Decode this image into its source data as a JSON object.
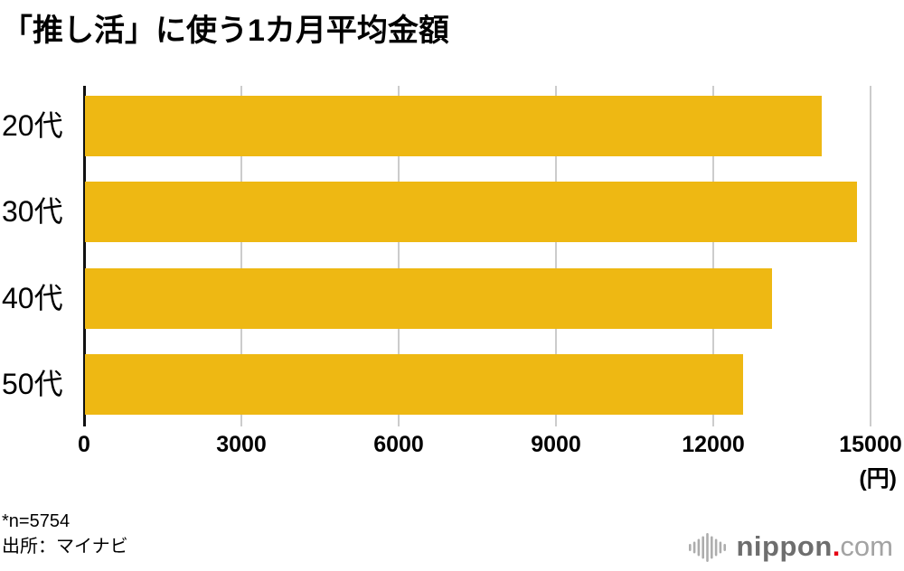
{
  "title": "「推し活」に使う1カ月平均金額",
  "chart_data": {
    "type": "bar",
    "orientation": "horizontal",
    "title": "「推し活」に使う1カ月平均金額",
    "categories": [
      "20代",
      "30代",
      "40代",
      "50代"
    ],
    "values": [
      14050,
      14720,
      13100,
      12550
    ],
    "xlabel": "(円)",
    "ylabel": "",
    "xlim": [
      0,
      15000
    ],
    "xticks": [
      0,
      3000,
      6000,
      9000,
      12000,
      15000
    ],
    "grid": true,
    "legend": "none",
    "bar_color": "#EEB813"
  },
  "axis": {
    "unit_label": "(円)",
    "tick_labels": [
      "0",
      "3000",
      "6000",
      "9000",
      "12000",
      "15000"
    ]
  },
  "footnotes": {
    "sample": "*n=5754",
    "source": "出所：マイナビ"
  },
  "logo": {
    "icon": "waveform-icon",
    "nippon": "nippon",
    "dot": ".",
    "com": "com"
  },
  "colors": {
    "bar": "#EEB813",
    "gridline": "#CCCCCC",
    "axis": "#111111",
    "logo_red": "#E60012",
    "logo_dark_gray": "#6E6E6E",
    "logo_light_gray": "#A3A3A3",
    "logo_icon_gray": "#ADADAD",
    "background": "#FFFFFF",
    "text": "#000000"
  }
}
